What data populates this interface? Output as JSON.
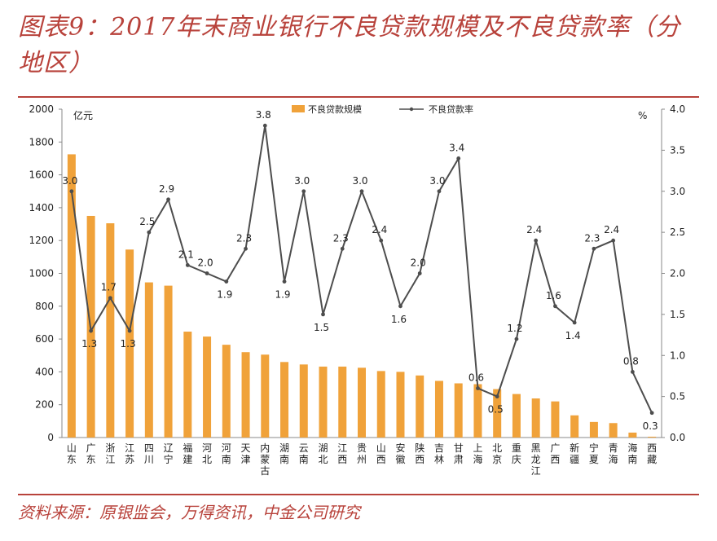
{
  "header": {
    "title": "图表9：2017年末商业银行不良贷款规模及不良贷款率（分地区）"
  },
  "footer": {
    "source": "资料来源：原银监会，万得资讯，中金公司研究"
  },
  "chart_data": {
    "type": "bar",
    "secondary_type": "line",
    "title": "2017年末商业银行不良贷款规模及不良贷款率（分地区）",
    "categories": [
      "山东",
      "广东",
      "浙江",
      "江苏",
      "四川",
      "辽宁",
      "福建",
      "河北",
      "河南",
      "天津",
      "内蒙古",
      "湖南",
      "云南",
      "湖北",
      "江西",
      "贵州",
      "山西",
      "安徽",
      "陕西",
      "吉林",
      "甘肃",
      "上海",
      "北京",
      "重庆",
      "黑龙江",
      "广西",
      "新疆",
      "宁夏",
      "青海",
      "海南",
      "西藏"
    ],
    "series": [
      {
        "name": "不良贷款规模",
        "axis": "left",
        "type": "bar",
        "color": "#f0a23a",
        "values": [
          1725,
          1350,
          1305,
          1145,
          945,
          925,
          645,
          615,
          565,
          520,
          505,
          460,
          445,
          432,
          432,
          425,
          405,
          400,
          378,
          345,
          330,
          325,
          295,
          265,
          238,
          220,
          135,
          95,
          88,
          30,
          5
        ]
      },
      {
        "name": "不良贷款率",
        "axis": "right",
        "type": "line",
        "color": "#4d4d4d",
        "values": [
          3.0,
          1.3,
          1.7,
          1.3,
          2.5,
          2.9,
          2.1,
          2.0,
          1.9,
          2.3,
          3.8,
          1.9,
          3.0,
          1.5,
          2.3,
          3.0,
          2.4,
          1.6,
          2.0,
          3.0,
          3.4,
          0.6,
          0.5,
          1.2,
          2.4,
          1.6,
          1.4,
          2.3,
          2.4,
          0.8,
          0.3
        ]
      }
    ],
    "y_left": {
      "label": "亿元",
      "ylim": [
        0,
        2000
      ],
      "ticks": [
        "0",
        "200",
        "400",
        "600",
        "800",
        "1000",
        "1200",
        "1400",
        "1600",
        "1800",
        "2000"
      ]
    },
    "y_right": {
      "label": "%",
      "ylim": [
        0,
        4.0
      ],
      "ticks": [
        "0.0",
        "0.5",
        "1.0",
        "1.5",
        "2.0",
        "2.5",
        "3.0",
        "3.5",
        "4.0"
      ]
    },
    "legend": {
      "position": "top-center",
      "items": [
        "不良贷款规模",
        "不良贷款率"
      ]
    },
    "rate_labels": [
      "3.0",
      "1.3",
      "1.7",
      "1.3",
      "2.5",
      "2.9",
      "2.1",
      "2.0",
      "1.9",
      "2.3",
      "3.8",
      "1.9",
      "3.0",
      "1.5",
      "2.3",
      "3.0",
      "2.4",
      "1.6",
      "2.0",
      "3.0",
      "3.4",
      "0.6",
      "0.5",
      "1.2",
      "2.4",
      "1.6",
      "1.4",
      "2.3",
      "2.4",
      "0.8",
      "0.3"
    ],
    "grid": false
  }
}
